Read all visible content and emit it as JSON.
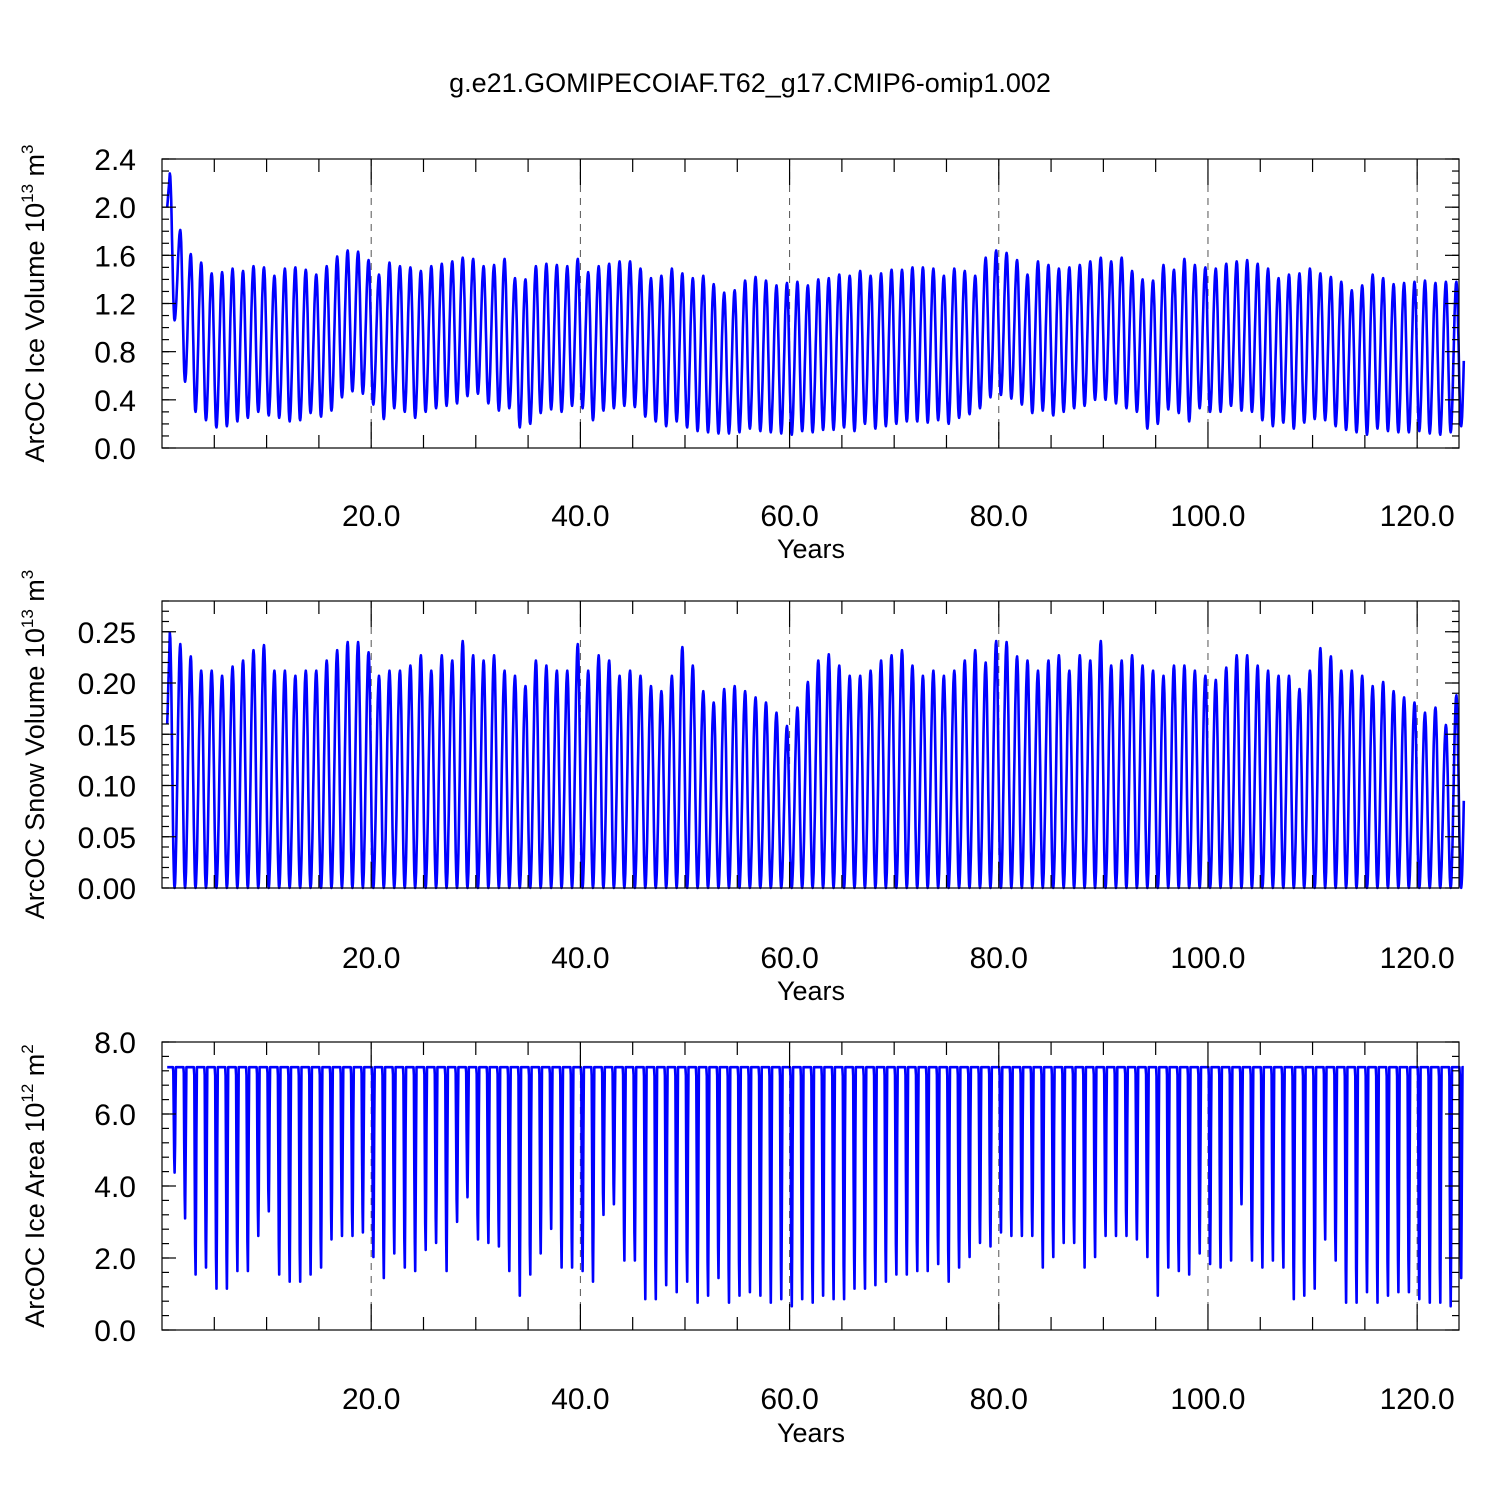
{
  "figure_title": "g.e21.GOMIPECOIAF.T62_g17.CMIP6-omip1.002",
  "colors": {
    "series": "#0000ff",
    "axes": "#000000",
    "grid": "#555555"
  },
  "panels": [
    {
      "ylabel": "ArcOC Ice Volume 10",
      "ylabel_exp": "13",
      "ylabel_unit": " m",
      "ylabel_unit_exp": "3",
      "xlabel": "Years",
      "xticks": [
        {
          "v": 20,
          "label": "20.0"
        },
        {
          "v": 40,
          "label": "40.0"
        },
        {
          "v": 60,
          "label": "60.0"
        },
        {
          "v": 80,
          "label": "80.0"
        },
        {
          "v": 100,
          "label": "100.0"
        },
        {
          "v": 120,
          "label": "120.0"
        }
      ],
      "yticks": [
        {
          "v": 0.0,
          "label": "0.0"
        },
        {
          "v": 0.4,
          "label": "0.4"
        },
        {
          "v": 0.8,
          "label": "0.8"
        },
        {
          "v": 1.2,
          "label": "1.2"
        },
        {
          "v": 1.6,
          "label": "1.6"
        },
        {
          "v": 2.0,
          "label": "2.0"
        },
        {
          "v": 2.4,
          "label": "2.4"
        }
      ]
    },
    {
      "ylabel": "ArcOC Snow Volume 10",
      "ylabel_exp": "13",
      "ylabel_unit": " m",
      "ylabel_unit_exp": "3",
      "xlabel": "Years",
      "xticks": [
        {
          "v": 20,
          "label": "20.0"
        },
        {
          "v": 40,
          "label": "40.0"
        },
        {
          "v": 60,
          "label": "60.0"
        },
        {
          "v": 80,
          "label": "80.0"
        },
        {
          "v": 100,
          "label": "100.0"
        },
        {
          "v": 120,
          "label": "120.0"
        }
      ],
      "yticks": [
        {
          "v": 0.0,
          "label": "0.00"
        },
        {
          "v": 0.05,
          "label": "0.05"
        },
        {
          "v": 0.1,
          "label": "0.10"
        },
        {
          "v": 0.15,
          "label": "0.15"
        },
        {
          "v": 0.2,
          "label": "0.20"
        },
        {
          "v": 0.25,
          "label": "0.25"
        }
      ]
    },
    {
      "ylabel": "ArcOC Ice Area 10",
      "ylabel_exp": "12",
      "ylabel_unit": " m",
      "ylabel_unit_exp": "2",
      "xlabel": "Years",
      "xticks": [
        {
          "v": 20,
          "label": "20.0"
        },
        {
          "v": 40,
          "label": "40.0"
        },
        {
          "v": 60,
          "label": "60.0"
        },
        {
          "v": 80,
          "label": "80.0"
        },
        {
          "v": 100,
          "label": "100.0"
        },
        {
          "v": 120,
          "label": "120.0"
        }
      ],
      "yticks": [
        {
          "v": 0.0,
          "label": "0.0"
        },
        {
          "v": 2.0,
          "label": "2.0"
        },
        {
          "v": 4.0,
          "label": "4.0"
        },
        {
          "v": 6.0,
          "label": "6.0"
        },
        {
          "v": 8.0,
          "label": "8.0"
        }
      ]
    }
  ],
  "chart_data": [
    {
      "type": "line",
      "title": "g.e21.GOMIPECOIAF.T62_g17.CMIP6-omip1.002",
      "xlabel": "Years",
      "ylabel": "ArcOC Ice Volume 10^13 m^3",
      "xlim": [
        0,
        124
      ],
      "ylim": [
        0,
        2.4
      ],
      "grid": "dashed vertical at major x ticks",
      "series_color": "#0000ff",
      "annual_cycle": "seasonal oscillation, one peak (spring max) and one trough (autumn min) per year",
      "years": [
        1,
        2,
        3,
        4,
        5,
        6,
        7,
        8,
        9,
        10,
        11,
        12,
        13,
        14,
        15,
        16,
        17,
        18,
        19,
        20,
        21,
        22,
        23,
        24,
        25,
        26,
        27,
        28,
        29,
        30,
        31,
        32,
        33,
        34,
        35,
        36,
        37,
        38,
        39,
        40,
        41,
        42,
        43,
        44,
        45,
        46,
        47,
        48,
        49,
        50,
        51,
        52,
        53,
        54,
        55,
        56,
        57,
        58,
        59,
        60,
        61,
        62,
        63,
        64,
        65,
        66,
        67,
        68,
        69,
        70,
        71,
        72,
        73,
        74,
        75,
        76,
        77,
        78,
        79,
        80,
        81,
        82,
        83,
        84,
        85,
        86,
        87,
        88,
        89,
        90,
        91,
        92,
        93,
        94,
        95,
        96,
        97,
        98,
        99,
        100,
        101,
        102,
        103,
        104,
        105,
        106,
        107,
        108,
        109,
        110,
        111,
        112,
        113,
        114,
        115,
        116,
        117,
        118,
        119,
        120,
        121,
        122,
        123,
        124
      ],
      "annual_max": [
        2.28,
        1.81,
        1.61,
        1.54,
        1.45,
        1.46,
        1.49,
        1.47,
        1.51,
        1.5,
        1.43,
        1.49,
        1.5,
        1.48,
        1.44,
        1.51,
        1.59,
        1.64,
        1.63,
        1.56,
        1.44,
        1.54,
        1.51,
        1.5,
        1.47,
        1.51,
        1.53,
        1.55,
        1.58,
        1.57,
        1.51,
        1.52,
        1.57,
        1.41,
        1.4,
        1.51,
        1.53,
        1.52,
        1.51,
        1.57,
        1.46,
        1.51,
        1.53,
        1.55,
        1.55,
        1.49,
        1.41,
        1.43,
        1.49,
        1.45,
        1.41,
        1.43,
        1.36,
        1.29,
        1.31,
        1.39,
        1.42,
        1.39,
        1.35,
        1.37,
        1.38,
        1.35,
        1.4,
        1.41,
        1.44,
        1.43,
        1.47,
        1.43,
        1.45,
        1.48,
        1.48,
        1.5,
        1.5,
        1.49,
        1.43,
        1.49,
        1.47,
        1.43,
        1.58,
        1.64,
        1.62,
        1.56,
        1.44,
        1.55,
        1.52,
        1.49,
        1.5,
        1.52,
        1.55,
        1.58,
        1.55,
        1.58,
        1.47,
        1.4,
        1.39,
        1.52,
        1.48,
        1.57,
        1.52,
        1.5,
        1.49,
        1.53,
        1.55,
        1.56,
        1.53,
        1.49,
        1.41,
        1.44,
        1.45,
        1.49,
        1.45,
        1.42,
        1.38,
        1.31,
        1.35,
        1.44,
        1.41,
        1.36,
        1.37,
        1.38,
        1.39,
        1.37,
        1.38,
        1.38
      ],
      "annual_min": [
        1.06,
        0.55,
        0.3,
        0.23,
        0.17,
        0.18,
        0.22,
        0.25,
        0.3,
        0.27,
        0.25,
        0.22,
        0.23,
        0.29,
        0.26,
        0.31,
        0.42,
        0.47,
        0.45,
        0.36,
        0.24,
        0.33,
        0.3,
        0.25,
        0.3,
        0.33,
        0.35,
        0.37,
        0.43,
        0.45,
        0.37,
        0.31,
        0.33,
        0.17,
        0.2,
        0.29,
        0.32,
        0.3,
        0.35,
        0.33,
        0.23,
        0.31,
        0.33,
        0.35,
        0.34,
        0.26,
        0.22,
        0.18,
        0.22,
        0.17,
        0.14,
        0.13,
        0.12,
        0.12,
        0.13,
        0.16,
        0.14,
        0.13,
        0.12,
        0.11,
        0.14,
        0.13,
        0.15,
        0.15,
        0.17,
        0.14,
        0.2,
        0.16,
        0.18,
        0.2,
        0.22,
        0.22,
        0.21,
        0.23,
        0.2,
        0.25,
        0.28,
        0.33,
        0.42,
        0.44,
        0.41,
        0.36,
        0.29,
        0.31,
        0.27,
        0.3,
        0.33,
        0.35,
        0.4,
        0.4,
        0.37,
        0.33,
        0.3,
        0.16,
        0.2,
        0.32,
        0.29,
        0.22,
        0.33,
        0.3,
        0.3,
        0.35,
        0.31,
        0.3,
        0.23,
        0.18,
        0.21,
        0.16,
        0.21,
        0.24,
        0.23,
        0.18,
        0.15,
        0.13,
        0.11,
        0.16,
        0.14,
        0.13,
        0.13,
        0.14,
        0.12,
        0.11,
        0.13,
        0.18
      ]
    },
    {
      "type": "line",
      "title": "",
      "xlabel": "Years",
      "ylabel": "ArcOC Snow Volume 10^13 m^3",
      "xlim": [
        0,
        124
      ],
      "ylim": [
        0,
        0.28
      ],
      "grid": "dashed vertical at major x ticks",
      "series_color": "#0000ff",
      "annual_cycle": "seasonal oscillation reaching ~0.00 each summer",
      "years": [
        1,
        2,
        3,
        4,
        5,
        6,
        7,
        8,
        9,
        10,
        11,
        12,
        13,
        14,
        15,
        16,
        17,
        18,
        19,
        20,
        21,
        22,
        23,
        24,
        25,
        26,
        27,
        28,
        29,
        30,
        31,
        32,
        33,
        34,
        35,
        36,
        37,
        38,
        39,
        40,
        41,
        42,
        43,
        44,
        45,
        46,
        47,
        48,
        49,
        50,
        51,
        52,
        53,
        54,
        55,
        56,
        57,
        58,
        59,
        60,
        61,
        62,
        63,
        64,
        65,
        66,
        67,
        68,
        69,
        70,
        71,
        72,
        73,
        74,
        75,
        76,
        77,
        78,
        79,
        80,
        81,
        82,
        83,
        84,
        85,
        86,
        87,
        88,
        89,
        90,
        91,
        92,
        93,
        94,
        95,
        96,
        97,
        98,
        99,
        100,
        101,
        102,
        103,
        104,
        105,
        106,
        107,
        108,
        109,
        110,
        111,
        112,
        113,
        114,
        115,
        116,
        117,
        118,
        119,
        120,
        121,
        122,
        123,
        124
      ],
      "annual_max": [
        0.249,
        0.238,
        0.226,
        0.212,
        0.212,
        0.207,
        0.216,
        0.222,
        0.232,
        0.237,
        0.212,
        0.212,
        0.207,
        0.212,
        0.212,
        0.222,
        0.232,
        0.24,
        0.24,
        0.23,
        0.207,
        0.212,
        0.212,
        0.217,
        0.227,
        0.212,
        0.227,
        0.222,
        0.241,
        0.227,
        0.222,
        0.227,
        0.212,
        0.207,
        0.197,
        0.222,
        0.217,
        0.212,
        0.212,
        0.238,
        0.212,
        0.227,
        0.222,
        0.207,
        0.212,
        0.207,
        0.197,
        0.192,
        0.207,
        0.235,
        0.217,
        0.192,
        0.181,
        0.194,
        0.197,
        0.192,
        0.186,
        0.181,
        0.171,
        0.158,
        0.176,
        0.201,
        0.222,
        0.228,
        0.217,
        0.207,
        0.207,
        0.212,
        0.222,
        0.227,
        0.232,
        0.217,
        0.207,
        0.212,
        0.207,
        0.212,
        0.222,
        0.232,
        0.22,
        0.241,
        0.24,
        0.226,
        0.222,
        0.212,
        0.222,
        0.227,
        0.212,
        0.227,
        0.222,
        0.241,
        0.217,
        0.222,
        0.227,
        0.217,
        0.212,
        0.207,
        0.217,
        0.217,
        0.212,
        0.207,
        0.203,
        0.215,
        0.227,
        0.227,
        0.217,
        0.212,
        0.207,
        0.207,
        0.194,
        0.212,
        0.234,
        0.226,
        0.212,
        0.212,
        0.207,
        0.197,
        0.201,
        0.192,
        0.186,
        0.181,
        0.171,
        0.176,
        0.159,
        0.188
      ],
      "annual_min": [
        0.0,
        0.0,
        0.0,
        0.0,
        0.0,
        0.0,
        0.0,
        0.0,
        0.0,
        0.0,
        0.0,
        0.0,
        0.0,
        0.0,
        0.0,
        0.0,
        0.0,
        0.0,
        0.0,
        0.0,
        0.0,
        0.0,
        0.0,
        0.0,
        0.0,
        0.0,
        0.0,
        0.0,
        0.0,
        0.0,
        0.0,
        0.0,
        0.0,
        0.0,
        0.0,
        0.0,
        0.0,
        0.0,
        0.0,
        0.0,
        0.0,
        0.0,
        0.0,
        0.0,
        0.0,
        0.0,
        0.0,
        0.0,
        0.0,
        0.0,
        0.0,
        0.0,
        0.0,
        0.0,
        0.0,
        0.0,
        0.0,
        0.0,
        0.0,
        0.0,
        0.0,
        0.0,
        0.0,
        0.0,
        0.0,
        0.0,
        0.0,
        0.0,
        0.0,
        0.0,
        0.0,
        0.0,
        0.0,
        0.0,
        0.0,
        0.0,
        0.0,
        0.0,
        0.0,
        0.0,
        0.0,
        0.0,
        0.0,
        0.0,
        0.0,
        0.0,
        0.0,
        0.0,
        0.0,
        0.0,
        0.0,
        0.0,
        0.0,
        0.0,
        0.0,
        0.0,
        0.0,
        0.0,
        0.0,
        0.0,
        0.0,
        0.0,
        0.0,
        0.0,
        0.0,
        0.0,
        0.0,
        0.0,
        0.0,
        0.0,
        0.0,
        0.0,
        0.0,
        0.0,
        0.0,
        0.0,
        0.0,
        0.0,
        0.0,
        0.0,
        0.0,
        0.0,
        0.0,
        0.0
      ]
    },
    {
      "type": "line",
      "title": "",
      "xlabel": "Years",
      "ylabel": "ArcOC Ice Area 10^12 m^2",
      "xlim": [
        0,
        124
      ],
      "ylim": [
        0,
        8.0
      ],
      "grid": "dashed vertical at major x ticks",
      "series_color": "#0000ff",
      "annual_cycle": "flat winter plateau ~7.3 with sharp summer minimum",
      "years": [
        1,
        2,
        3,
        4,
        5,
        6,
        7,
        8,
        9,
        10,
        11,
        12,
        13,
        14,
        15,
        16,
        17,
        18,
        19,
        20,
        21,
        22,
        23,
        24,
        25,
        26,
        27,
        28,
        29,
        30,
        31,
        32,
        33,
        34,
        35,
        36,
        37,
        38,
        39,
        40,
        41,
        42,
        43,
        44,
        45,
        46,
        47,
        48,
        49,
        50,
        51,
        52,
        53,
        54,
        55,
        56,
        57,
        58,
        59,
        60,
        61,
        62,
        63,
        64,
        65,
        66,
        67,
        68,
        69,
        70,
        71,
        72,
        73,
        74,
        75,
        76,
        77,
        78,
        79,
        80,
        81,
        82,
        83,
        84,
        85,
        86,
        87,
        88,
        89,
        90,
        91,
        92,
        93,
        94,
        95,
        96,
        97,
        98,
        99,
        100,
        101,
        102,
        103,
        104,
        105,
        106,
        107,
        108,
        109,
        110,
        111,
        112,
        113,
        114,
        115,
        116,
        117,
        118,
        119,
        120,
        121,
        122,
        123,
        124
      ],
      "annual_max": [
        7.3,
        7.3,
        7.3,
        7.3,
        7.3,
        7.3,
        7.3,
        7.3,
        7.3,
        7.3,
        7.3,
        7.3,
        7.3,
        7.3,
        7.3,
        7.3,
        7.3,
        7.3,
        7.3,
        7.3,
        7.3,
        7.3,
        7.3,
        7.3,
        7.3,
        7.3,
        7.3,
        7.3,
        7.3,
        7.3,
        7.3,
        7.3,
        7.3,
        7.3,
        7.3,
        7.3,
        7.3,
        7.3,
        7.3,
        7.3,
        7.3,
        7.3,
        7.3,
        7.3,
        7.3,
        7.3,
        7.3,
        7.3,
        7.3,
        7.3,
        7.3,
        7.3,
        7.3,
        7.3,
        7.3,
        7.3,
        7.3,
        7.3,
        7.3,
        7.3,
        7.3,
        7.3,
        7.3,
        7.3,
        7.3,
        7.3,
        7.3,
        7.3,
        7.3,
        7.3,
        7.3,
        7.3,
        7.3,
        7.3,
        7.3,
        7.3,
        7.3,
        7.3,
        7.3,
        7.3,
        7.3,
        7.3,
        7.3,
        7.3,
        7.3,
        7.3,
        7.3,
        7.3,
        7.3,
        7.3,
        7.3,
        7.3,
        7.3,
        7.3,
        7.3,
        7.3,
        7.3,
        7.3,
        7.3,
        7.3,
        7.3,
        7.3,
        7.3,
        7.3,
        7.3,
        7.3,
        7.3,
        7.3,
        7.3,
        7.3,
        7.3,
        7.3,
        7.3,
        7.3,
        7.3,
        7.3,
        7.3,
        7.3,
        7.3,
        7.3,
        7.3,
        7.3,
        7.3,
        7.3
      ],
      "annual_min": [
        4.3,
        3.0,
        1.4,
        1.6,
        1.0,
        1.0,
        1.5,
        1.5,
        2.5,
        3.2,
        1.4,
        1.2,
        1.2,
        1.4,
        1.6,
        2.4,
        2.5,
        2.5,
        2.6,
        1.9,
        1.3,
        2.0,
        1.6,
        1.5,
        2.1,
        2.3,
        1.5,
        2.9,
        3.6,
        2.4,
        2.3,
        2.2,
        1.5,
        0.8,
        1.4,
        2.0,
        2.7,
        1.6,
        1.6,
        1.5,
        1.2,
        3.1,
        3.4,
        1.8,
        1.8,
        0.7,
        0.7,
        1.1,
        0.9,
        1.2,
        0.6,
        0.8,
        1.3,
        0.6,
        0.8,
        0.9,
        0.8,
        0.6,
        0.7,
        0.5,
        0.7,
        0.6,
        0.8,
        0.7,
        0.7,
        1.0,
        1.0,
        1.1,
        1.2,
        1.4,
        1.4,
        1.5,
        1.5,
        1.7,
        1.2,
        1.6,
        1.9,
        2.3,
        2.2,
        2.6,
        2.5,
        2.5,
        2.5,
        1.6,
        1.9,
        2.3,
        2.3,
        1.6,
        1.9,
        2.5,
        2.5,
        2.5,
        2.4,
        1.9,
        0.8,
        1.6,
        1.5,
        1.4,
        2.0,
        1.7,
        1.6,
        1.8,
        3.4,
        1.8,
        1.6,
        1.8,
        1.6,
        0.7,
        0.8,
        1.0,
        2.4,
        1.8,
        0.6,
        0.6,
        0.9,
        0.6,
        0.8,
        0.9,
        0.9,
        0.7,
        0.6,
        0.6,
        0.5,
        1.3
      ]
    }
  ]
}
